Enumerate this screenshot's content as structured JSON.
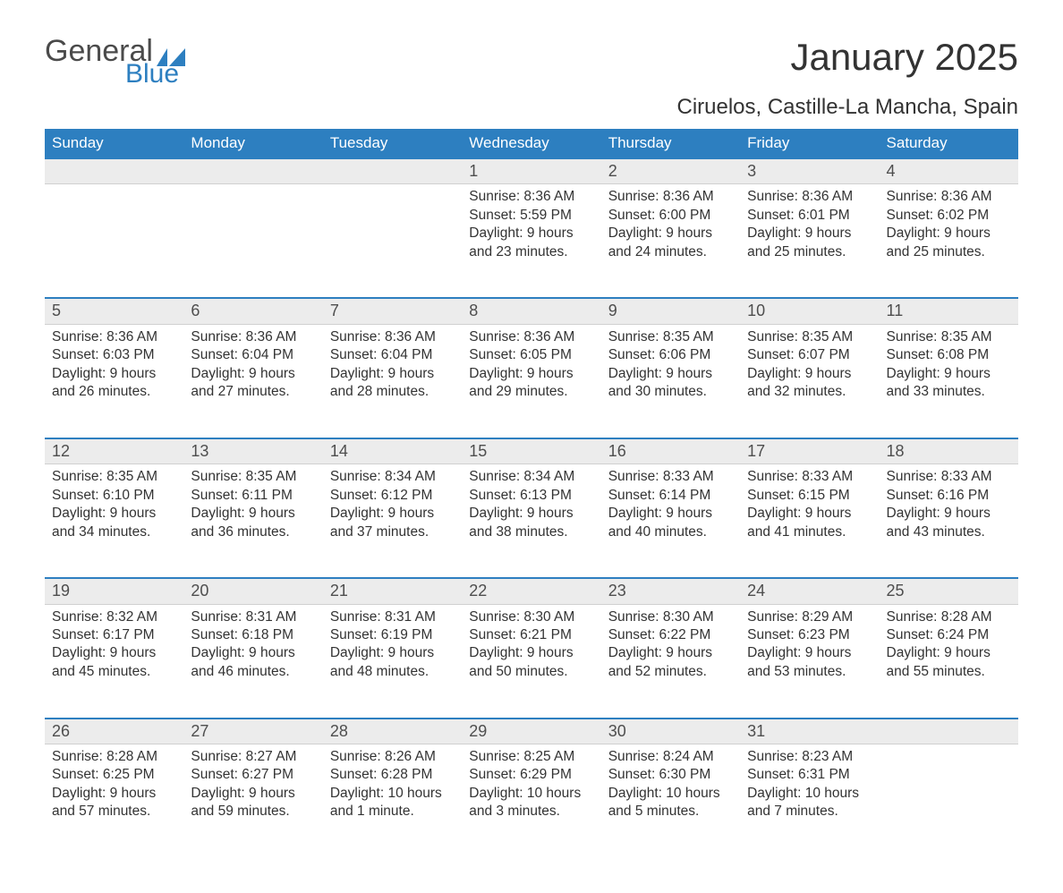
{
  "logo": {
    "word1": "General",
    "word2": "Blue",
    "accent": "#2d7fc0",
    "grey": "#4a4a4a"
  },
  "title": "January 2025",
  "location": "Ciruelos, Castille-La Mancha, Spain",
  "title_fontsize": 42,
  "location_fontsize": 24,
  "header_bg": "#2d7fc0",
  "header_text_color": "#ffffff",
  "daynum_bg": "#ececec",
  "daynum_border_top": "#2d7fc0",
  "body_text_color": "#333333",
  "background_color": "#ffffff",
  "cell_fontsize": 15.5,
  "daynum_fontsize": 18,
  "weekdays": [
    "Sunday",
    "Monday",
    "Tuesday",
    "Wednesday",
    "Thursday",
    "Friday",
    "Saturday"
  ],
  "weeks": [
    [
      null,
      null,
      null,
      {
        "n": "1",
        "sunrise": "Sunrise: 8:36 AM",
        "sunset": "Sunset: 5:59 PM",
        "day1": "Daylight: 9 hours",
        "day2": "and 23 minutes."
      },
      {
        "n": "2",
        "sunrise": "Sunrise: 8:36 AM",
        "sunset": "Sunset: 6:00 PM",
        "day1": "Daylight: 9 hours",
        "day2": "and 24 minutes."
      },
      {
        "n": "3",
        "sunrise": "Sunrise: 8:36 AM",
        "sunset": "Sunset: 6:01 PM",
        "day1": "Daylight: 9 hours",
        "day2": "and 25 minutes."
      },
      {
        "n": "4",
        "sunrise": "Sunrise: 8:36 AM",
        "sunset": "Sunset: 6:02 PM",
        "day1": "Daylight: 9 hours",
        "day2": "and 25 minutes."
      }
    ],
    [
      {
        "n": "5",
        "sunrise": "Sunrise: 8:36 AM",
        "sunset": "Sunset: 6:03 PM",
        "day1": "Daylight: 9 hours",
        "day2": "and 26 minutes."
      },
      {
        "n": "6",
        "sunrise": "Sunrise: 8:36 AM",
        "sunset": "Sunset: 6:04 PM",
        "day1": "Daylight: 9 hours",
        "day2": "and 27 minutes."
      },
      {
        "n": "7",
        "sunrise": "Sunrise: 8:36 AM",
        "sunset": "Sunset: 6:04 PM",
        "day1": "Daylight: 9 hours",
        "day2": "and 28 minutes."
      },
      {
        "n": "8",
        "sunrise": "Sunrise: 8:36 AM",
        "sunset": "Sunset: 6:05 PM",
        "day1": "Daylight: 9 hours",
        "day2": "and 29 minutes."
      },
      {
        "n": "9",
        "sunrise": "Sunrise: 8:35 AM",
        "sunset": "Sunset: 6:06 PM",
        "day1": "Daylight: 9 hours",
        "day2": "and 30 minutes."
      },
      {
        "n": "10",
        "sunrise": "Sunrise: 8:35 AM",
        "sunset": "Sunset: 6:07 PM",
        "day1": "Daylight: 9 hours",
        "day2": "and 32 minutes."
      },
      {
        "n": "11",
        "sunrise": "Sunrise: 8:35 AM",
        "sunset": "Sunset: 6:08 PM",
        "day1": "Daylight: 9 hours",
        "day2": "and 33 minutes."
      }
    ],
    [
      {
        "n": "12",
        "sunrise": "Sunrise: 8:35 AM",
        "sunset": "Sunset: 6:10 PM",
        "day1": "Daylight: 9 hours",
        "day2": "and 34 minutes."
      },
      {
        "n": "13",
        "sunrise": "Sunrise: 8:35 AM",
        "sunset": "Sunset: 6:11 PM",
        "day1": "Daylight: 9 hours",
        "day2": "and 36 minutes."
      },
      {
        "n": "14",
        "sunrise": "Sunrise: 8:34 AM",
        "sunset": "Sunset: 6:12 PM",
        "day1": "Daylight: 9 hours",
        "day2": "and 37 minutes."
      },
      {
        "n": "15",
        "sunrise": "Sunrise: 8:34 AM",
        "sunset": "Sunset: 6:13 PM",
        "day1": "Daylight: 9 hours",
        "day2": "and 38 minutes."
      },
      {
        "n": "16",
        "sunrise": "Sunrise: 8:33 AM",
        "sunset": "Sunset: 6:14 PM",
        "day1": "Daylight: 9 hours",
        "day2": "and 40 minutes."
      },
      {
        "n": "17",
        "sunrise": "Sunrise: 8:33 AM",
        "sunset": "Sunset: 6:15 PM",
        "day1": "Daylight: 9 hours",
        "day2": "and 41 minutes."
      },
      {
        "n": "18",
        "sunrise": "Sunrise: 8:33 AM",
        "sunset": "Sunset: 6:16 PM",
        "day1": "Daylight: 9 hours",
        "day2": "and 43 minutes."
      }
    ],
    [
      {
        "n": "19",
        "sunrise": "Sunrise: 8:32 AM",
        "sunset": "Sunset: 6:17 PM",
        "day1": "Daylight: 9 hours",
        "day2": "and 45 minutes."
      },
      {
        "n": "20",
        "sunrise": "Sunrise: 8:31 AM",
        "sunset": "Sunset: 6:18 PM",
        "day1": "Daylight: 9 hours",
        "day2": "and 46 minutes."
      },
      {
        "n": "21",
        "sunrise": "Sunrise: 8:31 AM",
        "sunset": "Sunset: 6:19 PM",
        "day1": "Daylight: 9 hours",
        "day2": "and 48 minutes."
      },
      {
        "n": "22",
        "sunrise": "Sunrise: 8:30 AM",
        "sunset": "Sunset: 6:21 PM",
        "day1": "Daylight: 9 hours",
        "day2": "and 50 minutes."
      },
      {
        "n": "23",
        "sunrise": "Sunrise: 8:30 AM",
        "sunset": "Sunset: 6:22 PM",
        "day1": "Daylight: 9 hours",
        "day2": "and 52 minutes."
      },
      {
        "n": "24",
        "sunrise": "Sunrise: 8:29 AM",
        "sunset": "Sunset: 6:23 PM",
        "day1": "Daylight: 9 hours",
        "day2": "and 53 minutes."
      },
      {
        "n": "25",
        "sunrise": "Sunrise: 8:28 AM",
        "sunset": "Sunset: 6:24 PM",
        "day1": "Daylight: 9 hours",
        "day2": "and 55 minutes."
      }
    ],
    [
      {
        "n": "26",
        "sunrise": "Sunrise: 8:28 AM",
        "sunset": "Sunset: 6:25 PM",
        "day1": "Daylight: 9 hours",
        "day2": "and 57 minutes."
      },
      {
        "n": "27",
        "sunrise": "Sunrise: 8:27 AM",
        "sunset": "Sunset: 6:27 PM",
        "day1": "Daylight: 9 hours",
        "day2": "and 59 minutes."
      },
      {
        "n": "28",
        "sunrise": "Sunrise: 8:26 AM",
        "sunset": "Sunset: 6:28 PM",
        "day1": "Daylight: 10 hours",
        "day2": "and 1 minute."
      },
      {
        "n": "29",
        "sunrise": "Sunrise: 8:25 AM",
        "sunset": "Sunset: 6:29 PM",
        "day1": "Daylight: 10 hours",
        "day2": "and 3 minutes."
      },
      {
        "n": "30",
        "sunrise": "Sunrise: 8:24 AM",
        "sunset": "Sunset: 6:30 PM",
        "day1": "Daylight: 10 hours",
        "day2": "and 5 minutes."
      },
      {
        "n": "31",
        "sunrise": "Sunrise: 8:23 AM",
        "sunset": "Sunset: 6:31 PM",
        "day1": "Daylight: 10 hours",
        "day2": "and 7 minutes."
      },
      null
    ]
  ]
}
